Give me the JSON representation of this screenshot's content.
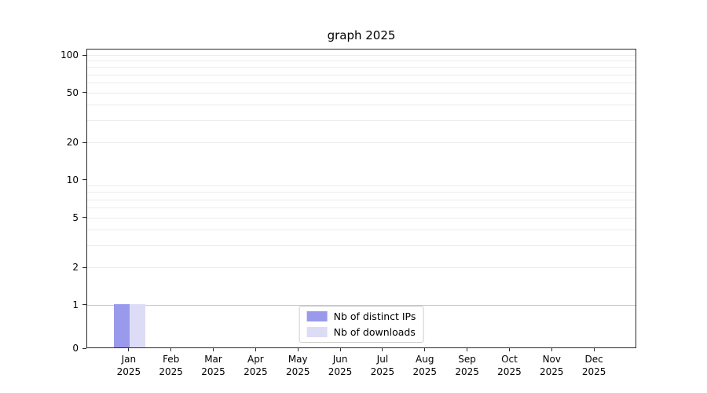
{
  "chart_data": {
    "type": "bar",
    "title": "graph 2025",
    "categories": [
      "Jan",
      "Feb",
      "Mar",
      "Apr",
      "May",
      "Jun",
      "Jul",
      "Aug",
      "Sep",
      "Oct",
      "Nov",
      "Dec"
    ],
    "category_year": "2025",
    "series": [
      {
        "name": "Nb of distinct IPs",
        "color": "#9a9aed",
        "values": [
          1,
          0,
          0,
          0,
          0,
          0,
          0,
          0,
          0,
          0,
          0,
          0
        ]
      },
      {
        "name": "Nb of downloads",
        "color": "#dcdcf7",
        "values": [
          1,
          0,
          0,
          0,
          0,
          0,
          0,
          0,
          0,
          0,
          0,
          0
        ]
      }
    ],
    "yticks": [
      0,
      1,
      2,
      5,
      10,
      20,
      50,
      100
    ],
    "ylim": [
      0,
      110
    ],
    "yscale": "symlog",
    "grid": "horizontal-minor-log",
    "grid_minor_values": [
      2,
      3,
      4,
      5,
      6,
      7,
      8,
      9,
      20,
      30,
      40,
      50,
      60,
      70,
      80,
      90,
      100
    ],
    "grid_emphasis_value": 1,
    "legend_position": "lower center",
    "xlabel": "",
    "ylabel": ""
  },
  "colors": {
    "grid_minor": "#ececec",
    "grid_major": "#c9c9c9",
    "spine": "#2b2b2b",
    "legend_border": "#cccccc"
  }
}
